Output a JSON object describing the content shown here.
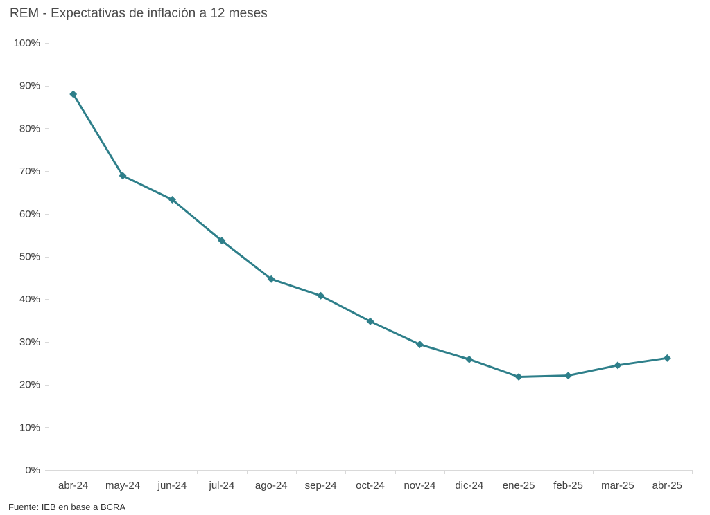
{
  "chart_data": {
    "type": "line",
    "title": "REM - Expectativas de inflación a 12 meses",
    "source": "Fuente: IEB en base a BCRA",
    "categories": [
      "abr-24",
      "may-24",
      "jun-24",
      "jul-24",
      "ago-24",
      "sep-24",
      "oct-24",
      "nov-24",
      "dic-24",
      "ene-25",
      "feb-25",
      "mar-25",
      "abr-25"
    ],
    "series": [
      {
        "values": [
          88.0,
          68.9,
          63.3,
          53.7,
          44.7,
          40.8,
          34.8,
          29.4,
          25.9,
          21.8,
          22.1,
          24.5,
          26.2
        ]
      }
    ],
    "y_ticks": [
      "0%",
      "10%",
      "20%",
      "30%",
      "40%",
      "50%",
      "60%",
      "70%",
      "80%",
      "90%",
      "100%"
    ],
    "ylim": [
      0,
      100
    ],
    "grid": false,
    "legend": "none",
    "marker": "diamond",
    "line_color": "#2e7f8a"
  }
}
